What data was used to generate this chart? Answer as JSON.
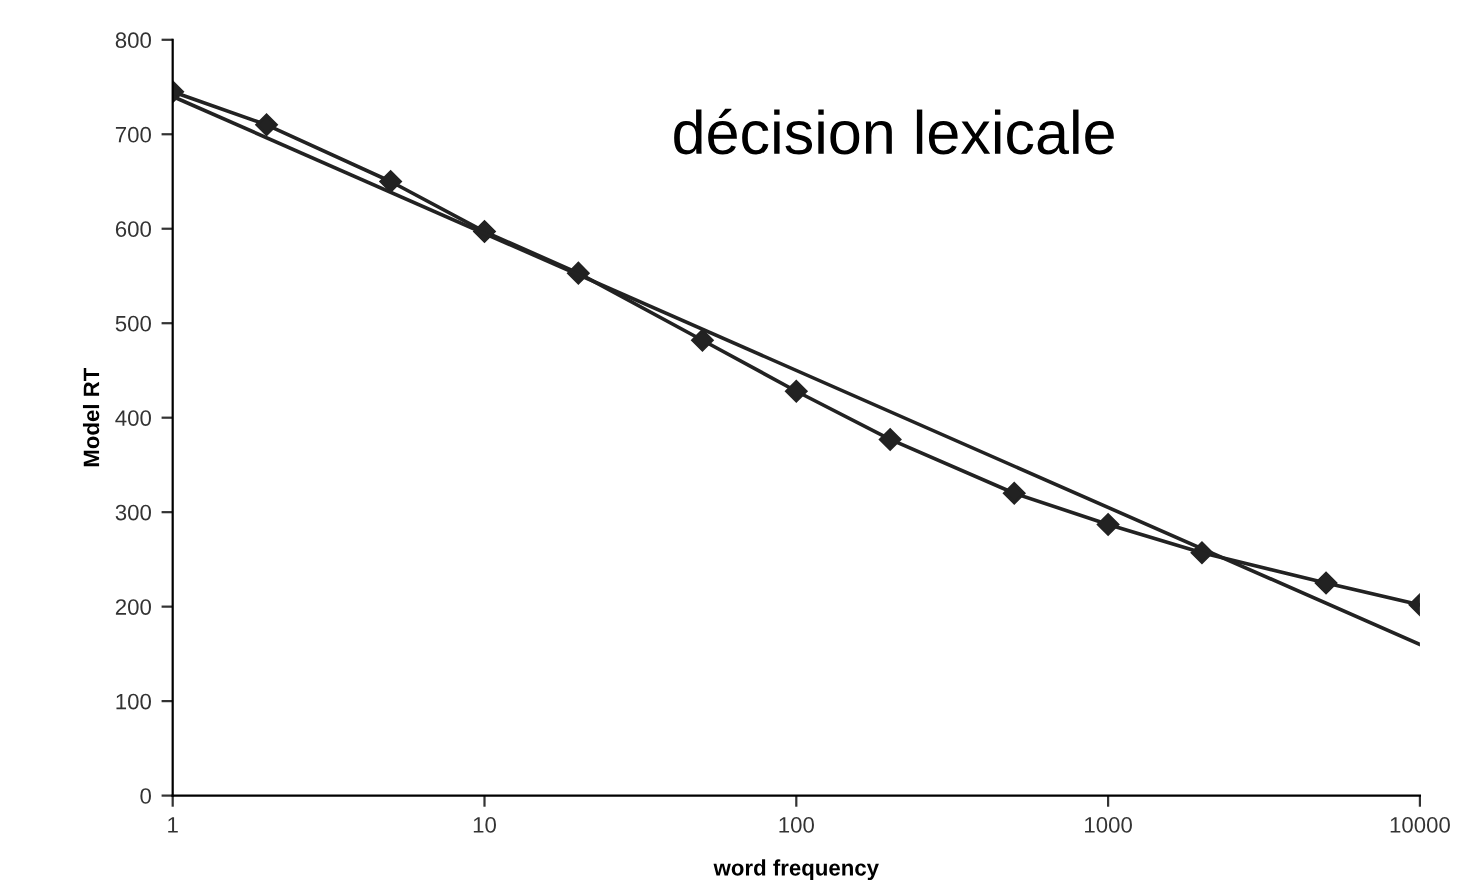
{
  "chart_data": {
    "type": "line",
    "title": "décision lexicale",
    "xlabel": "word frequency",
    "ylabel": "Model RT",
    "log": "x",
    "xlim": [
      1,
      10000
    ],
    "xticks": [
      1,
      10,
      100,
      1000,
      10000
    ],
    "ylim": [
      0,
      800
    ],
    "yticks": [
      0,
      100,
      200,
      300,
      400,
      500,
      600,
      700,
      800
    ],
    "grid": false,
    "series": [
      {
        "color": "#222222",
        "marker": "diamond",
        "x": [
          1,
          2,
          5,
          10,
          20,
          50,
          100,
          200,
          500,
          1000,
          2000,
          5000,
          10000
        ],
        "values": [
          745,
          710,
          650,
          597,
          553,
          482,
          428,
          377,
          320,
          287,
          257,
          225,
          202
        ]
      },
      {
        "color": "#222222",
        "marker": "none",
        "x": [
          1,
          10000
        ],
        "values": [
          740,
          160
        ]
      }
    ]
  }
}
